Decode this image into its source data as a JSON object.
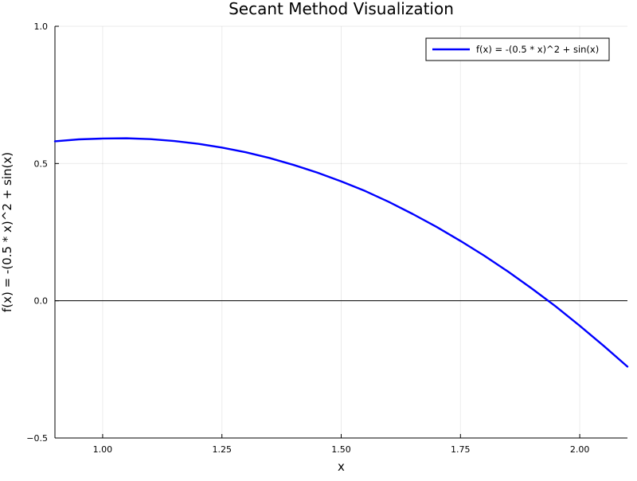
{
  "chart_data": {
    "type": "line",
    "title": "Secant Method Visualization",
    "xlabel": "x",
    "ylabel": "f(x) = -(0.5 * x)^2 + sin(x)",
    "xlim": [
      0.9,
      2.1
    ],
    "ylim": [
      -0.5,
      1.0
    ],
    "x_ticks": [
      {
        "value": 1.0,
        "label": "1.00"
      },
      {
        "value": 1.25,
        "label": "1.25"
      },
      {
        "value": 1.5,
        "label": "1.50"
      },
      {
        "value": 1.75,
        "label": "1.75"
      },
      {
        "value": 2.0,
        "label": "2.00"
      }
    ],
    "y_ticks": [
      {
        "value": -0.5,
        "label": "−0.5"
      },
      {
        "value": 0.0,
        "label": "0.0"
      },
      {
        "value": 0.5,
        "label": "0.5"
      },
      {
        "value": 1.0,
        "label": "1.0"
      }
    ],
    "grid": true,
    "legend_position": "top-right",
    "reference_lines": [
      {
        "axis": "y",
        "value": 0.0,
        "color": "#000000"
      }
    ],
    "series": [
      {
        "name": "f(x) = -(0.5 * x)^2 + sin(x)",
        "color": "#0000ff",
        "x": [
          0.9,
          0.95,
          1.0,
          1.05,
          1.1,
          1.15,
          1.2,
          1.25,
          1.3,
          1.35,
          1.4,
          1.45,
          1.5,
          1.55,
          1.6,
          1.65,
          1.7,
          1.75,
          1.8,
          1.85,
          1.9,
          1.95,
          2.0,
          2.05,
          2.1
        ],
        "y": [
          0.581,
          0.588,
          0.591,
          0.592,
          0.589,
          0.582,
          0.572,
          0.558,
          0.541,
          0.52,
          0.495,
          0.467,
          0.435,
          0.4,
          0.36,
          0.316,
          0.269,
          0.218,
          0.164,
          0.106,
          0.044,
          -0.021,
          -0.091,
          -0.164,
          -0.24
        ]
      }
    ]
  }
}
